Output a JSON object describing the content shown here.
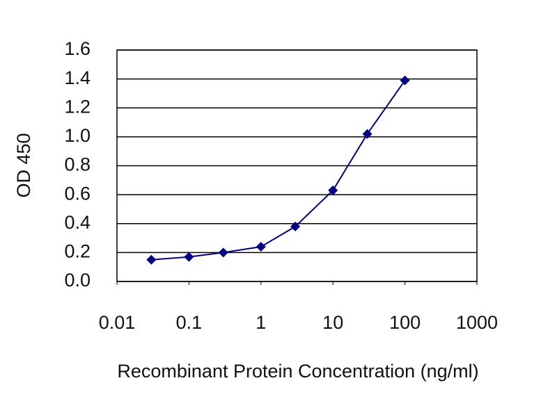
{
  "chart_data": {
    "type": "line",
    "xlabel": "Recombinant Protein Concentration (ng/ml)",
    "ylabel": "OD 450",
    "x": [
      0.03,
      0.1,
      0.3,
      1,
      3,
      10,
      30,
      100
    ],
    "values": [
      0.15,
      0.17,
      0.2,
      0.24,
      0.38,
      0.63,
      1.02,
      1.39
    ],
    "color": "#000080",
    "xscale": "log",
    "xlim": [
      0.01,
      1000
    ],
    "xticks": [
      0.01,
      0.1,
      1,
      10,
      100,
      1000
    ],
    "ylim": [
      0,
      1.6
    ],
    "yticks": [
      {
        "value": 0,
        "label": "0.0"
      },
      0.2,
      0.4,
      0.6,
      0.8,
      {
        "value": 1,
        "label": "1.0"
      },
      1.2,
      1.4,
      1.6
    ],
    "grid": true
  }
}
